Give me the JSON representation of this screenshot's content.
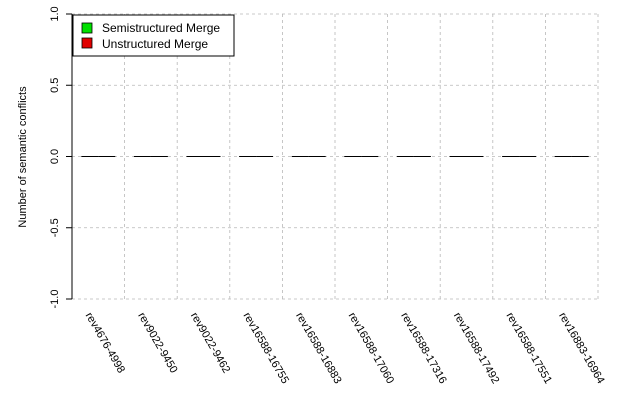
{
  "chart_data": {
    "type": "bar",
    "ylabel": "Number of semantic conflicts",
    "xlabel": "",
    "ylim": [
      -1.0,
      1.0
    ],
    "yticks": [
      "-1.0",
      "-0.5",
      "0.0",
      "0.5",
      "1.0"
    ],
    "grid": true,
    "legend_position": "top-left",
    "categories": [
      "rev4676-4998",
      "rev9022-9450",
      "rev9022-9462",
      "rev16588-16755",
      "rev16588-16883",
      "rev16588-17060",
      "rev16588-17316",
      "rev16588-17492",
      "rev16588-17551",
      "rev16883-16964"
    ],
    "series": [
      {
        "name": "Semistructured Merge",
        "color": "#00e000",
        "values": [
          0,
          0,
          0,
          0,
          0,
          0,
          0,
          0,
          0,
          0
        ]
      },
      {
        "name": "Unstructured Merge",
        "color": "#e00000",
        "values": [
          0,
          0,
          0,
          0,
          0,
          0,
          0,
          0,
          0,
          0
        ]
      }
    ]
  }
}
